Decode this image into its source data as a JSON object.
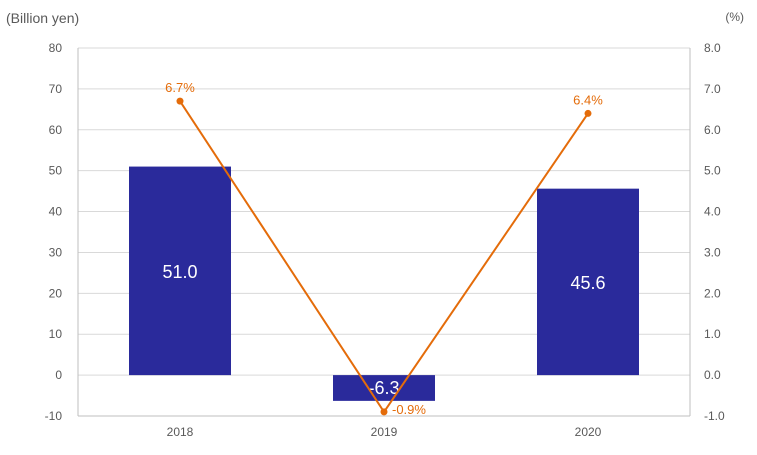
{
  "chart_data": {
    "type": "bar",
    "categories": [
      "2018",
      "2019",
      "2020"
    ],
    "left_axis": {
      "unit_label": "(Billion yen)",
      "range": [
        -10,
        80
      ],
      "ticks": [
        "-10",
        "0",
        "10",
        "20",
        "30",
        "40",
        "50",
        "60",
        "70",
        "80"
      ]
    },
    "right_axis": {
      "unit_label": "(%)",
      "range": [
        -1.0,
        8.0
      ],
      "ticks": [
        "-1.0",
        "0.0",
        "1.0",
        "2.0",
        "3.0",
        "4.0",
        "5.0",
        "6.0",
        "7.0",
        "8.0"
      ]
    },
    "series": [
      {
        "kind": "bar",
        "axis": "left",
        "values": [
          51.0,
          -6.3,
          45.6
        ],
        "labels": [
          "51.0",
          "-6.3",
          "45.6"
        ],
        "color": "#2a2a9b"
      },
      {
        "kind": "line",
        "axis": "right",
        "values": [
          6.7,
          -0.9,
          6.4
        ],
        "labels": [
          "6.7%",
          "-0.9%",
          "6.4%"
        ],
        "color": "#e46c0a"
      }
    ],
    "grid": true
  }
}
